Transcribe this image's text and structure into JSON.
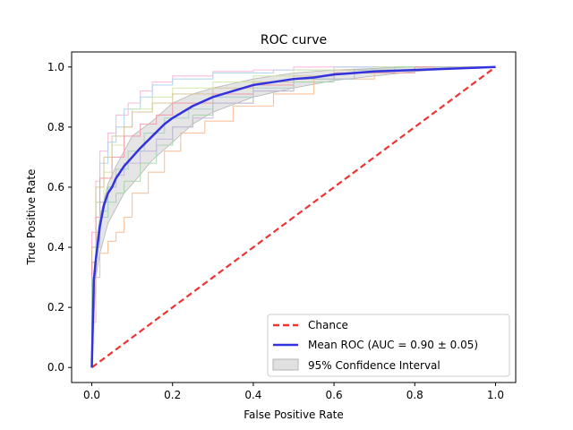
{
  "chart_data": {
    "type": "line",
    "title": "ROC curve",
    "xlabel": "False Positive Rate",
    "ylabel": "True Positive Rate",
    "xlim": [
      -0.05,
      1.05
    ],
    "ylim": [
      -0.05,
      1.05
    ],
    "x_ticks": [
      0.0,
      0.2,
      0.4,
      0.6,
      0.8,
      1.0
    ],
    "y_ticks": [
      0.0,
      0.2,
      0.4,
      0.6,
      0.8,
      1.0
    ],
    "x_tick_labels": [
      "0.0",
      "0.2",
      "0.4",
      "0.6",
      "0.8",
      "1.0"
    ],
    "y_tick_labels": [
      "0.0",
      "0.2",
      "0.4",
      "0.6",
      "0.8",
      "1.0"
    ],
    "grid": false,
    "legend_position": "lower-right",
    "colors": {
      "chance": "#ee3333",
      "mean": "#3333dd",
      "band_fill": "#e0e0e0",
      "band_edge": "#b5b5b5"
    },
    "chance": {
      "name": "Chance",
      "x": [
        0,
        1
      ],
      "y": [
        0,
        1
      ]
    },
    "mean_roc": {
      "name": "Mean ROC (AUC = 0.90 ± 0.05)",
      "x": [
        0.0,
        0.005,
        0.01,
        0.02,
        0.03,
        0.04,
        0.05,
        0.06,
        0.08,
        0.1,
        0.12,
        0.15,
        0.18,
        0.2,
        0.25,
        0.3,
        0.35,
        0.4,
        0.45,
        0.5,
        0.55,
        0.6,
        0.65,
        0.7,
        0.8,
        0.9,
        1.0
      ],
      "y": [
        0.0,
        0.29,
        0.36,
        0.47,
        0.54,
        0.58,
        0.6,
        0.63,
        0.67,
        0.7,
        0.73,
        0.77,
        0.81,
        0.83,
        0.87,
        0.9,
        0.92,
        0.94,
        0.95,
        0.96,
        0.965,
        0.975,
        0.98,
        0.985,
        0.99,
        0.995,
        1.0
      ]
    },
    "confidence_band": {
      "name": "95% Confidence Interval",
      "x": [
        0.0,
        0.01,
        0.02,
        0.04,
        0.06,
        0.08,
        0.1,
        0.15,
        0.2,
        0.25,
        0.3,
        0.4,
        0.5,
        0.6,
        0.7,
        0.8,
        0.9,
        1.0
      ],
      "lower": [
        0.0,
        0.3,
        0.38,
        0.48,
        0.53,
        0.58,
        0.61,
        0.69,
        0.75,
        0.81,
        0.85,
        0.9,
        0.93,
        0.955,
        0.97,
        0.985,
        0.995,
        1.0
      ],
      "upper": [
        0.0,
        0.4,
        0.5,
        0.61,
        0.67,
        0.72,
        0.77,
        0.82,
        0.88,
        0.91,
        0.93,
        0.96,
        0.98,
        0.99,
        0.995,
        1.0,
        1.0,
        1.0
      ]
    },
    "folds": [
      {
        "color": "#ffb0d8",
        "points": [
          [
            0,
            0
          ],
          [
            0.01,
            0.45
          ],
          [
            0.02,
            0.62
          ],
          [
            0.04,
            0.72
          ],
          [
            0.06,
            0.78
          ],
          [
            0.09,
            0.84
          ],
          [
            0.12,
            0.88
          ],
          [
            0.15,
            0.92
          ],
          [
            0.2,
            0.95
          ],
          [
            0.3,
            0.97
          ],
          [
            0.4,
            0.985
          ],
          [
            0.5,
            0.99
          ],
          [
            0.7,
            1.0
          ],
          [
            1.0,
            1.0
          ]
        ]
      },
      {
        "color": "#a8d2ee",
        "points": [
          [
            0,
            0
          ],
          [
            0.01,
            0.4
          ],
          [
            0.02,
            0.55
          ],
          [
            0.04,
            0.68
          ],
          [
            0.06,
            0.75
          ],
          [
            0.08,
            0.8
          ],
          [
            0.12,
            0.86
          ],
          [
            0.15,
            0.9
          ],
          [
            0.2,
            0.94
          ],
          [
            0.3,
            0.96
          ],
          [
            0.45,
            0.98
          ],
          [
            0.6,
            0.99
          ],
          [
            0.8,
            1.0
          ],
          [
            1.0,
            1.0
          ]
        ]
      },
      {
        "color": "#cfe5a0",
        "points": [
          [
            0,
            0
          ],
          [
            0.01,
            0.35
          ],
          [
            0.03,
            0.55
          ],
          [
            0.05,
            0.65
          ],
          [
            0.08,
            0.74
          ],
          [
            0.1,
            0.8
          ],
          [
            0.15,
            0.86
          ],
          [
            0.2,
            0.9
          ],
          [
            0.3,
            0.93
          ],
          [
            0.4,
            0.95
          ],
          [
            0.5,
            0.97
          ],
          [
            0.7,
            0.99
          ],
          [
            1.0,
            1.0
          ]
        ]
      },
      {
        "color": "#9fd6a5",
        "points": [
          [
            0,
            0
          ],
          [
            0.01,
            0.25
          ],
          [
            0.02,
            0.4
          ],
          [
            0.04,
            0.5
          ],
          [
            0.06,
            0.55
          ],
          [
            0.08,
            0.58
          ],
          [
            0.12,
            0.62
          ],
          [
            0.16,
            0.68
          ],
          [
            0.2,
            0.74
          ],
          [
            0.25,
            0.8
          ],
          [
            0.3,
            0.84
          ],
          [
            0.4,
            0.88
          ],
          [
            0.5,
            0.92
          ],
          [
            0.6,
            0.95
          ],
          [
            0.75,
            0.98
          ],
          [
            1.0,
            1.0
          ]
        ]
      },
      {
        "color": "#f6b98e",
        "points": [
          [
            0,
            0
          ],
          [
            0.01,
            0.15
          ],
          [
            0.02,
            0.3
          ],
          [
            0.04,
            0.38
          ],
          [
            0.06,
            0.42
          ],
          [
            0.08,
            0.45
          ],
          [
            0.1,
            0.5
          ],
          [
            0.14,
            0.58
          ],
          [
            0.18,
            0.65
          ],
          [
            0.22,
            0.72
          ],
          [
            0.28,
            0.78
          ],
          [
            0.35,
            0.82
          ],
          [
            0.45,
            0.87
          ],
          [
            0.55,
            0.91
          ],
          [
            0.7,
            0.96
          ],
          [
            0.85,
            0.99
          ],
          [
            1.0,
            1.0
          ]
        ]
      },
      {
        "color": "#c7b3de",
        "points": [
          [
            0,
            0
          ],
          [
            0.01,
            0.3
          ],
          [
            0.02,
            0.45
          ],
          [
            0.04,
            0.55
          ],
          [
            0.06,
            0.6
          ],
          [
            0.08,
            0.64
          ],
          [
            0.12,
            0.68
          ],
          [
            0.16,
            0.72
          ],
          [
            0.2,
            0.76
          ],
          [
            0.25,
            0.8
          ],
          [
            0.3,
            0.83
          ],
          [
            0.4,
            0.88
          ],
          [
            0.5,
            0.92
          ],
          [
            0.65,
            0.96
          ],
          [
            0.8,
            0.99
          ],
          [
            1.0,
            1.0
          ]
        ]
      },
      {
        "color": "#d8c398",
        "points": [
          [
            0,
            0
          ],
          [
            0.01,
            0.4
          ],
          [
            0.03,
            0.6
          ],
          [
            0.05,
            0.7
          ],
          [
            0.08,
            0.77
          ],
          [
            0.1,
            0.8
          ],
          [
            0.15,
            0.85
          ],
          [
            0.2,
            0.88
          ],
          [
            0.3,
            0.91
          ],
          [
            0.4,
            0.93
          ],
          [
            0.5,
            0.95
          ],
          [
            0.6,
            0.97
          ],
          [
            0.8,
            0.99
          ],
          [
            1.0,
            1.0
          ]
        ]
      },
      {
        "color": "#ee9aa8",
        "points": [
          [
            0,
            0
          ],
          [
            0.01,
            0.35
          ],
          [
            0.02,
            0.5
          ],
          [
            0.05,
            0.63
          ],
          [
            0.08,
            0.7
          ],
          [
            0.12,
            0.77
          ],
          [
            0.16,
            0.81
          ],
          [
            0.2,
            0.84
          ],
          [
            0.3,
            0.88
          ],
          [
            0.4,
            0.91
          ],
          [
            0.5,
            0.94
          ],
          [
            0.6,
            0.96
          ],
          [
            0.8,
            0.98
          ],
          [
            1.0,
            1.0
          ]
        ]
      },
      {
        "color": "#a4d0c9",
        "points": [
          [
            0,
            0
          ],
          [
            0.01,
            0.3
          ],
          [
            0.02,
            0.42
          ],
          [
            0.04,
            0.52
          ],
          [
            0.06,
            0.6
          ],
          [
            0.09,
            0.66
          ],
          [
            0.13,
            0.72
          ],
          [
            0.18,
            0.78
          ],
          [
            0.24,
            0.83
          ],
          [
            0.3,
            0.86
          ],
          [
            0.4,
            0.9
          ],
          [
            0.5,
            0.93
          ],
          [
            0.65,
            0.96
          ],
          [
            0.85,
            0.99
          ],
          [
            1.0,
            1.0
          ]
        ]
      }
    ],
    "legend": [
      {
        "kind": "dashed-line",
        "label": "Chance"
      },
      {
        "kind": "line",
        "label": "Mean ROC (AUC = 0.90 ± 0.05)"
      },
      {
        "kind": "patch",
        "label": "95% Confidence Interval"
      }
    ]
  }
}
